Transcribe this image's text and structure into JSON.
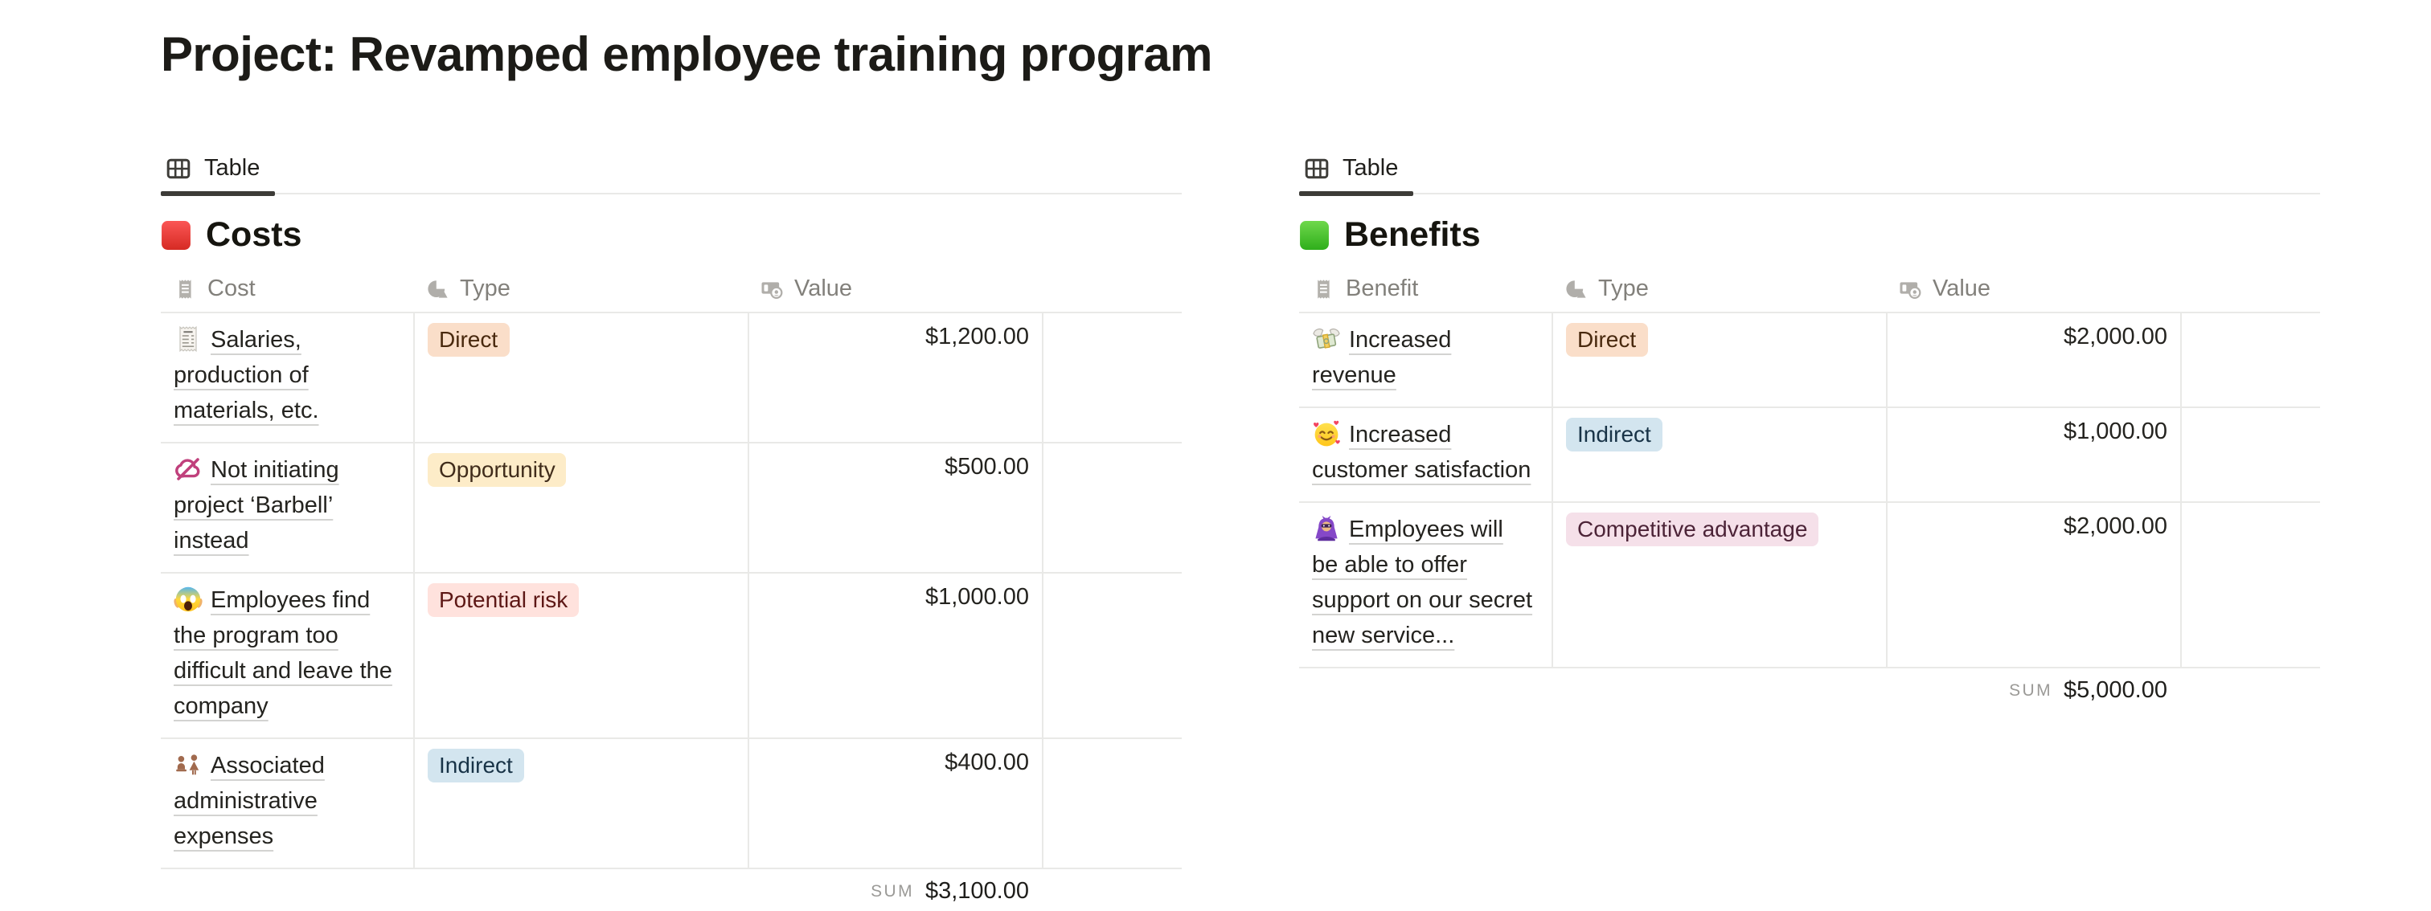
{
  "page": {
    "title": "Project: Revamped employee training program"
  },
  "tag_colors": {
    "orange": {
      "bg": "#fadec9",
      "text": "#49290e"
    },
    "yellow": {
      "bg": "#fdecc8",
      "text": "#402c1b"
    },
    "red": {
      "bg": "#ffe2dd",
      "text": "#5d1715"
    },
    "blue": {
      "bg": "#d3e5ef",
      "text": "#183347"
    },
    "pink": {
      "bg": "#f5e0e9",
      "text": "#4c2337"
    }
  },
  "tables": [
    {
      "id": "costs",
      "tab_label": "Table",
      "tab_icon": "table-view-icon",
      "heading": {
        "icon": "red-square-emoji",
        "text": "Costs"
      },
      "columns": [
        {
          "label": "Cost",
          "icon": "title-property-icon"
        },
        {
          "label": "Type",
          "icon": "select-property-icon"
        },
        {
          "label": "Value",
          "icon": "currency-property-icon"
        }
      ],
      "rows": [
        {
          "icon": "receipt-emoji",
          "title": "Salaries, production of materials, etc.",
          "type": {
            "label": "Direct",
            "color": "orange"
          },
          "value": "$1,200.00"
        },
        {
          "icon": "no-cloud-icon",
          "title": "Not initiating project ‘Barbell’ instead",
          "type": {
            "label": "Opportunity",
            "color": "yellow"
          },
          "value": "$500.00"
        },
        {
          "icon": "scream-emoji",
          "title": "Employees find the program too difficult and leave the company",
          "type": {
            "label": "Potential risk",
            "color": "red"
          },
          "value": "$1,000.00"
        },
        {
          "icon": "people-admin-icon",
          "title": "Associated administrative expenses",
          "type": {
            "label": "Indirect",
            "color": "blue"
          },
          "value": "$400.00"
        }
      ],
      "sum": {
        "label": "SUM",
        "value": "$3,100.00"
      }
    },
    {
      "id": "benefits",
      "tab_label": "Table",
      "tab_icon": "table-view-icon",
      "heading": {
        "icon": "green-square-emoji",
        "text": "Benefits"
      },
      "columns": [
        {
          "label": "Benefit",
          "icon": "title-property-icon"
        },
        {
          "label": "Type",
          "icon": "select-property-icon"
        },
        {
          "label": "Value",
          "icon": "currency-property-icon"
        }
      ],
      "rows": [
        {
          "icon": "money-with-wings-emoji",
          "title": "Increased revenue",
          "type": {
            "label": "Direct",
            "color": "orange"
          },
          "value": "$2,000.00"
        },
        {
          "icon": "smiling-face-with-hearts-emoji",
          "title": "Increased customer satisfaction",
          "type": {
            "label": "Indirect",
            "color": "blue"
          },
          "value": "$1,000.00"
        },
        {
          "icon": "supervillain-emoji",
          "title": "Employees will be able to offer support on our secret new service...",
          "type": {
            "label": "Competitive advantage",
            "color": "pink"
          },
          "value": "$2,000.00"
        }
      ],
      "sum": {
        "label": "SUM",
        "value": "$5,000.00"
      }
    }
  ]
}
